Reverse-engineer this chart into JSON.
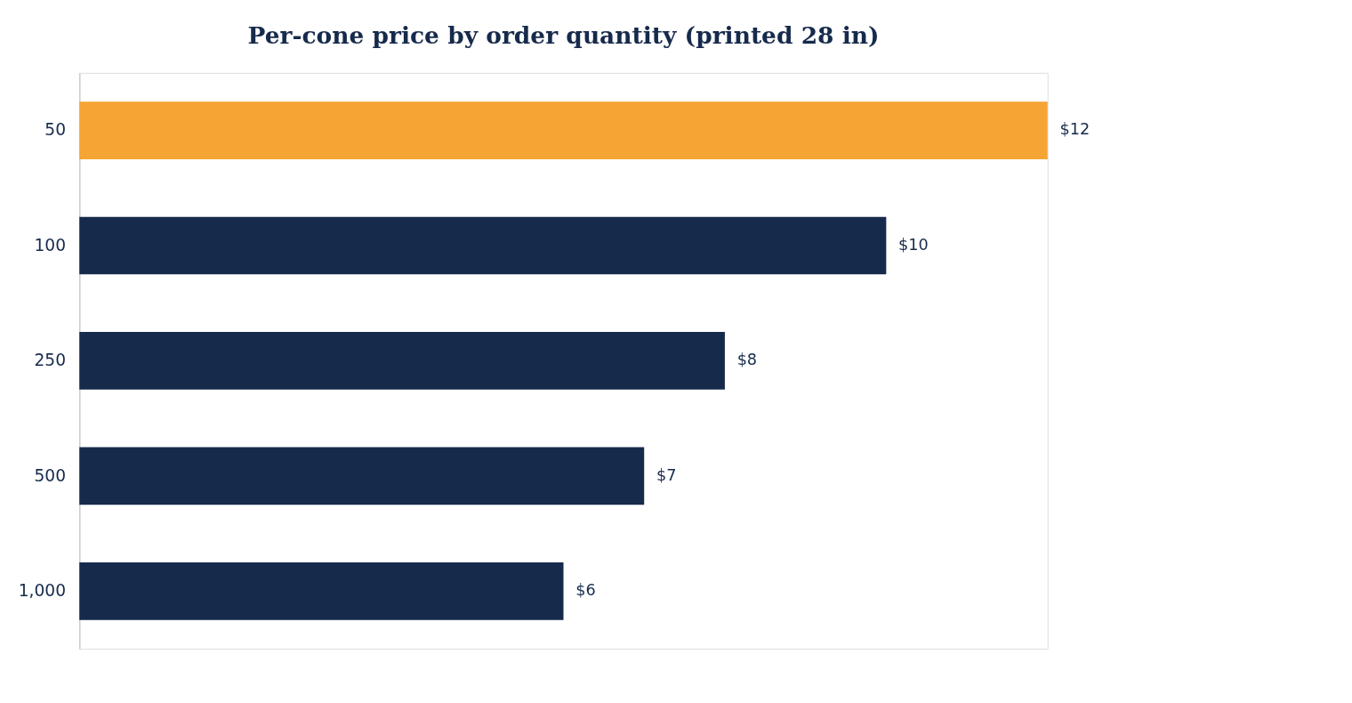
{
  "chart_data": {
    "type": "bar",
    "orientation": "horizontal",
    "title": "Per-cone price by order quantity (printed 28 in)",
    "categories": [
      "50",
      "100",
      "250",
      "500",
      "1,000"
    ],
    "values": [
      12,
      10,
      8,
      7,
      6
    ],
    "colors": [
      "#f5a533",
      "#162a4b",
      "#162a4b",
      "#162a4b",
      "#162a4b"
    ],
    "value_labels": [
      "$12",
      "$10",
      "$8",
      "$7",
      "$6"
    ],
    "grid": false
  }
}
